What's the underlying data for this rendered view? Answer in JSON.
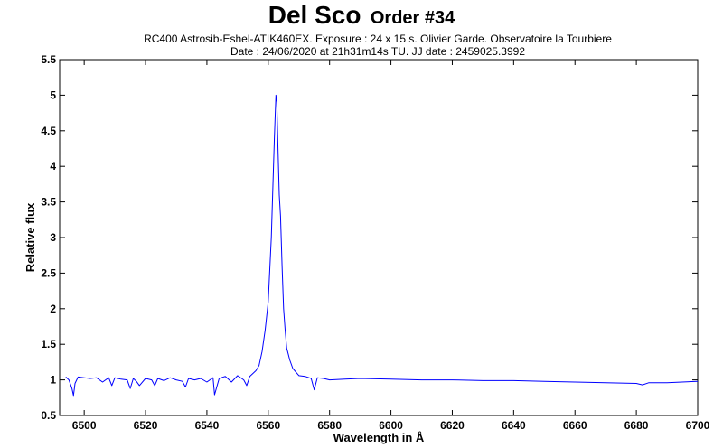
{
  "chart_data": {
    "type": "line",
    "title": "Del Sco",
    "title_suffix": "Order #34",
    "subtitle_lines": [
      "RC400 Astrosib-Eshel-ATIK460EX. Exposure : 24 x 15 s. Olivier Garde. Observatoire la Tourbiere",
      "Date : 24/06/2020 at 21h31m14s TU. JJ date : 2459025.3992"
    ],
    "xlabel": "Wavelength in Å",
    "ylabel": "Relative flux",
    "xlim": [
      6492,
      6700
    ],
    "ylim": [
      0.5,
      5.5
    ],
    "xticks": [
      6500,
      6520,
      6540,
      6560,
      6580,
      6600,
      6620,
      6640,
      6660,
      6680,
      6700
    ],
    "yticks": [
      0.5,
      1,
      1.5,
      2,
      2.5,
      3,
      3.5,
      4,
      4.5,
      5,
      5.5
    ],
    "ytick_labels": [
      "0.5",
      "1",
      "1.5",
      "2",
      "2.5",
      "3",
      "3.5",
      "4",
      "4.5",
      "5",
      "5.5"
    ],
    "grid": false,
    "line_color": "#0000ff",
    "series": [
      {
        "x": [
          6494,
          6495,
          6496,
          6496.5,
          6497,
          6498,
          6500,
          6502,
          6504,
          6506,
          6508,
          6509,
          6510,
          6512,
          6514,
          6515,
          6516,
          6517,
          6518,
          6520,
          6522,
          6523,
          6524,
          6526,
          6528,
          6530,
          6532,
          6533,
          6534,
          6536,
          6538,
          6540,
          6542,
          6542.5,
          6544,
          6546,
          6548,
          6550,
          6552,
          6553,
          6554,
          6556,
          6557,
          6558,
          6559,
          6560,
          6561,
          6561.5,
          6562,
          6562.5,
          6562.8,
          6563.2,
          6563.6,
          6564,
          6564.5,
          6565,
          6565.5,
          6566,
          6567,
          6568,
          6570,
          6572,
          6574,
          6575,
          6576,
          6578,
          6580,
          6585,
          6590,
          6600,
          6610,
          6620,
          6630,
          6640,
          6650,
          6660,
          6670,
          6680,
          6682,
          6684,
          6690,
          6700
        ],
        "y": [
          1.04,
          1.0,
          0.88,
          0.78,
          0.95,
          1.04,
          1.03,
          1.02,
          1.03,
          0.97,
          1.03,
          0.92,
          1.03,
          1.01,
          1.0,
          0.88,
          1.02,
          0.98,
          0.92,
          1.02,
          1.0,
          0.92,
          1.02,
          0.99,
          1.03,
          1.0,
          0.98,
          0.9,
          1.02,
          1.0,
          1.02,
          0.97,
          1.03,
          0.79,
          1.02,
          1.05,
          0.97,
          1.06,
          1.0,
          0.92,
          1.05,
          1.13,
          1.2,
          1.4,
          1.7,
          2.1,
          3.0,
          3.7,
          4.4,
          5.0,
          4.9,
          4.2,
          3.6,
          3.3,
          2.6,
          2.0,
          1.7,
          1.45,
          1.28,
          1.16,
          1.06,
          1.05,
          1.02,
          0.86,
          1.03,
          1.02,
          1.0,
          1.01,
          1.02,
          1.01,
          1.0,
          1.0,
          0.99,
          0.99,
          0.98,
          0.97,
          0.96,
          0.95,
          0.93,
          0.96,
          0.96,
          0.98
        ]
      }
    ]
  }
}
